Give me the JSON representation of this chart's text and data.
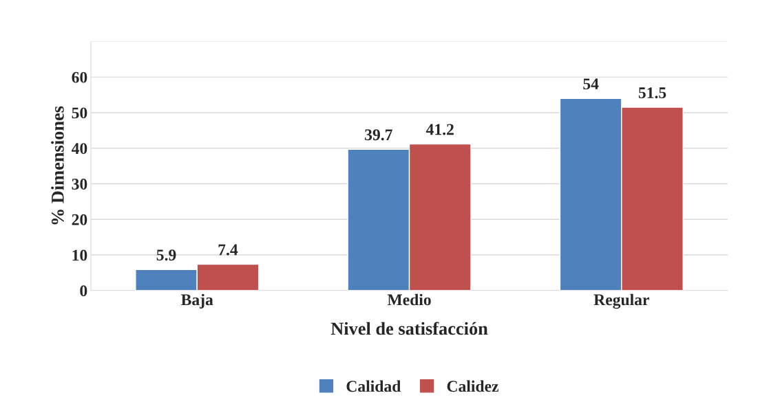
{
  "chart_data": {
    "type": "bar",
    "xlabel": "Nivel de satisfacción",
    "ylabel": "% Dimensiones",
    "categories": [
      "Baja",
      "Medio",
      "Regular"
    ],
    "series": [
      {
        "name": "Calidad",
        "color": "#4f81bd",
        "values": [
          5.9,
          39.7,
          54
        ]
      },
      {
        "name": "Calidez",
        "color": "#c0504d",
        "values": [
          7.4,
          41.2,
          51.5
        ]
      }
    ],
    "ylim": [
      0,
      70
    ],
    "yticks": [
      0,
      10,
      20,
      30,
      40,
      50,
      60,
      {
        "value": 70,
        "label": null
      }
    ],
    "grid": "y",
    "legend": "bottom",
    "data_labels": true
  }
}
